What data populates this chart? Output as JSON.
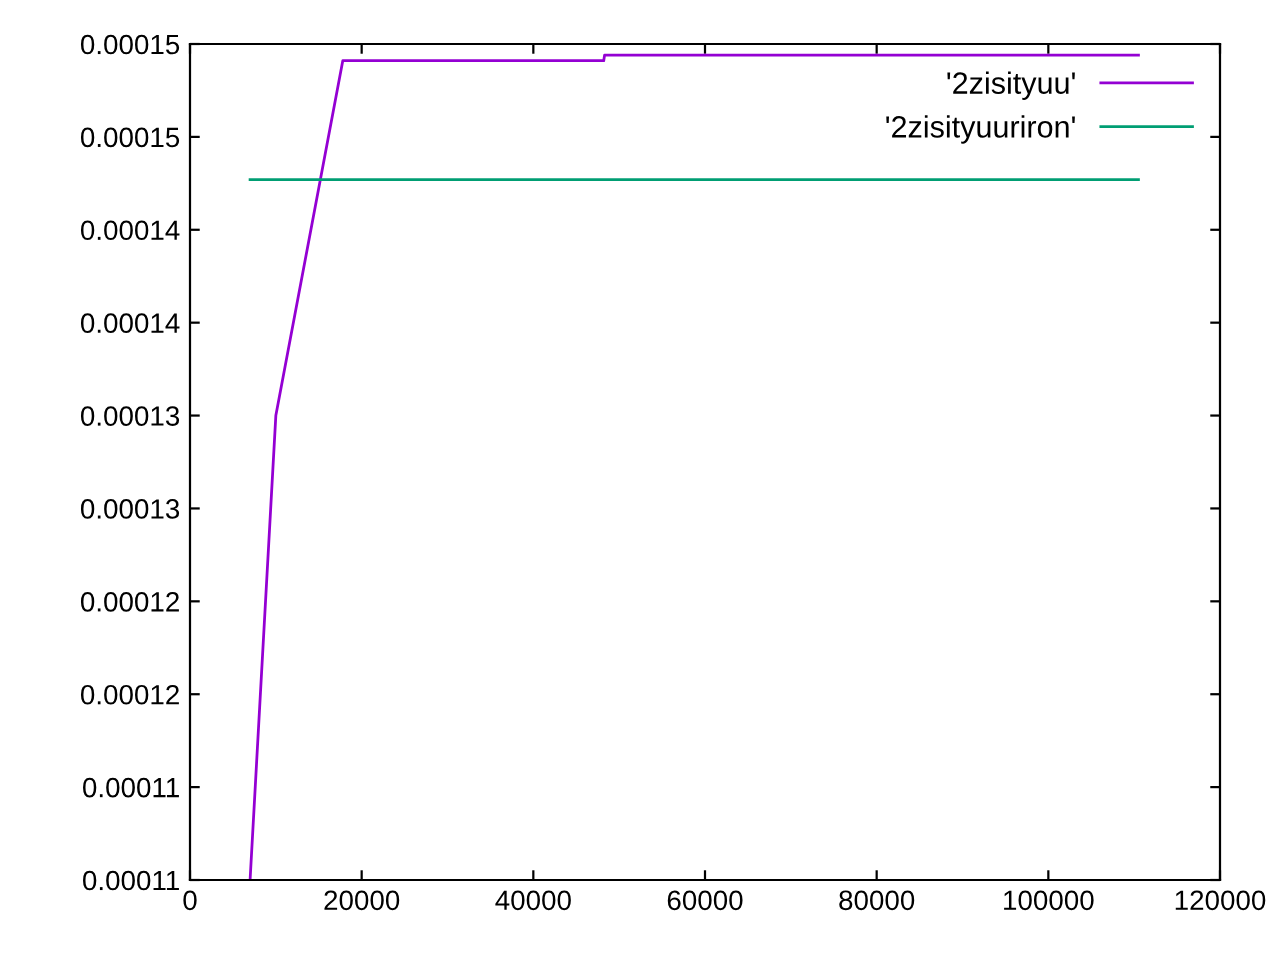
{
  "chart_data": {
    "type": "line",
    "series": [
      {
        "name": "'2zisityuu'",
        "color": "#9400d3",
        "x": [
          7000,
          10000,
          17800,
          48200,
          48300,
          110500
        ],
        "values": [
          0.00011,
          0.000135,
          0.0001541,
          0.0001541,
          0.0001544,
          0.0001544
        ]
      },
      {
        "name": "'2zisityuuriron'",
        "color": "#009e73",
        "x": [
          7000,
          110500
        ],
        "values": [
          0.0001477,
          0.0001477
        ]
      }
    ],
    "xlim": [
      0,
      120000
    ],
    "xticks": [
      0,
      20000,
      40000,
      60000,
      80000,
      100000,
      120000
    ],
    "ylim": [
      0.00011,
      0.000155
    ],
    "yticks": [
      {
        "value": 0.00011,
        "label": "0.00011"
      },
      {
        "value": 0.000115,
        "label": "0.00011"
      },
      {
        "value": 0.00012,
        "label": "0.00012"
      },
      {
        "value": 0.000125,
        "label": "0.00012"
      },
      {
        "value": 0.00013,
        "label": "0.00013"
      },
      {
        "value": 0.000135,
        "label": "0.00013"
      },
      {
        "value": 0.00014,
        "label": "0.00014"
      },
      {
        "value": 0.000145,
        "label": "0.00014"
      },
      {
        "value": 0.00015,
        "label": "0.00015"
      },
      {
        "value": 0.000155,
        "label": "0.00015"
      }
    ],
    "grid": false,
    "legend": "top right",
    "marker": "none",
    "line_style": "solid"
  }
}
